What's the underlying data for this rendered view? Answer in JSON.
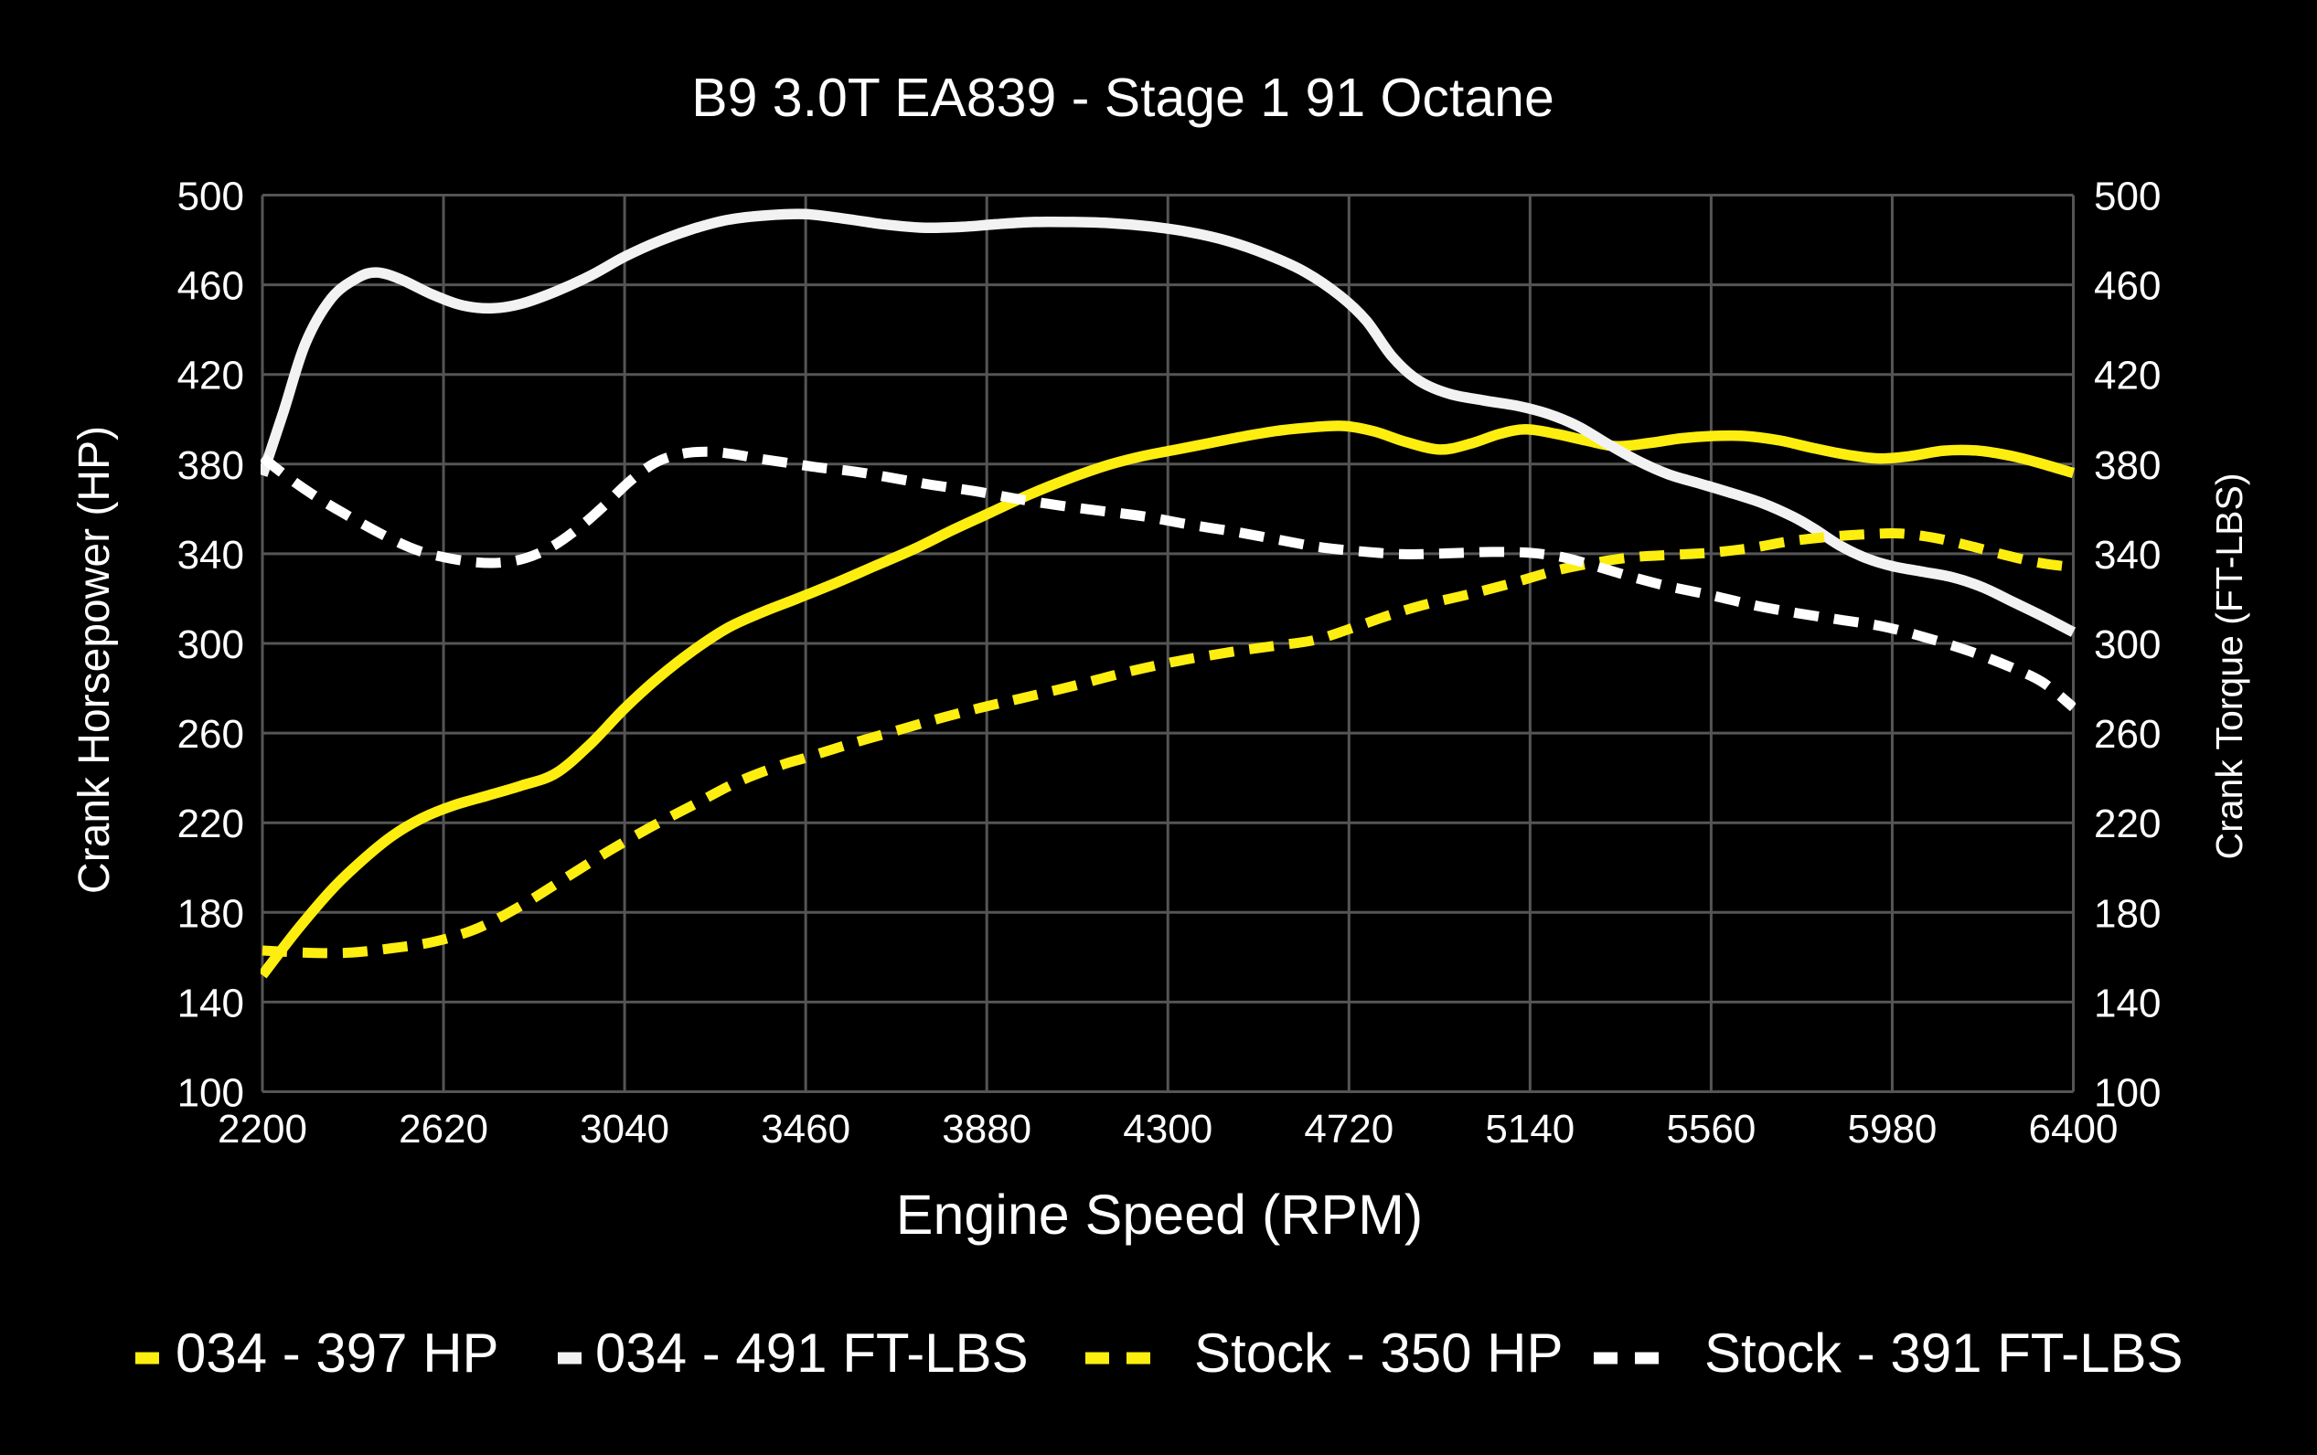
{
  "title": "B9 3.0T EA839 - Stage 1 91 Octane",
  "x_axis": {
    "label": "Engine Speed (RPM)",
    "min": 2200,
    "max": 6400,
    "ticks": [
      2200,
      2620,
      3040,
      3460,
      3880,
      4300,
      4720,
      5140,
      5560,
      5980,
      6400
    ]
  },
  "y_axis_left": {
    "label": "Crank Horsepower (HP)",
    "min": 100,
    "max": 500,
    "ticks": [
      100,
      140,
      180,
      220,
      260,
      300,
      340,
      380,
      420,
      460,
      500
    ]
  },
  "y_axis_right": {
    "label": "Crank Torque (FT-LBS)",
    "min": 100,
    "max": 500,
    "ticks": [
      100,
      140,
      180,
      220,
      260,
      300,
      340,
      380,
      420,
      460,
      500
    ]
  },
  "colors": {
    "background": "#000000",
    "grid": "#555555",
    "yellow": "#fdee10",
    "white_solid": "#f2f2f2",
    "white_dashed": "#ffffff",
    "text": "#ffffff"
  },
  "legend": [
    {
      "label": "034 - 397 HP",
      "color": "#fdee10",
      "dashed": false
    },
    {
      "label": "034 - 491 FT-LBS",
      "color": "#f2f2f2",
      "dashed": false
    },
    {
      "label": "Stock - 350 HP",
      "color": "#fdee10",
      "dashed": true
    },
    {
      "label": "Stock - 391 FT-LBS",
      "color": "#ffffff",
      "dashed": true
    }
  ],
  "chart_data": {
    "type": "line",
    "title": "B9 3.0T EA839 - Stage 1 91 Octane",
    "xlabel": "Engine Speed (RPM)",
    "ylabel": "Crank Horsepower (HP)",
    "ylabel_right": "Crank Torque (FT-LBS)",
    "xlim": [
      2200,
      6400
    ],
    "ylim": [
      100,
      500
    ],
    "grid": true,
    "legend_position": "bottom",
    "series": [
      {
        "name": "034 - 397 HP",
        "axis": "horsepower",
        "color": "#fdee10",
        "style": "solid",
        "peak": "397 HP",
        "points": [
          [
            2200,
            152
          ],
          [
            2280,
            172
          ],
          [
            2360,
            190
          ],
          [
            2430,
            203
          ],
          [
            2500,
            214
          ],
          [
            2570,
            222
          ],
          [
            2640,
            227.5
          ],
          [
            2720,
            232
          ],
          [
            2800,
            236.5
          ],
          [
            2880,
            242
          ],
          [
            2960,
            255
          ],
          [
            3040,
            271
          ],
          [
            3120,
            285
          ],
          [
            3200,
            297
          ],
          [
            3280,
            307
          ],
          [
            3360,
            314
          ],
          [
            3440,
            320
          ],
          [
            3530,
            327
          ],
          [
            3620,
            334.5
          ],
          [
            3710,
            342
          ],
          [
            3800,
            350.5
          ],
          [
            3890,
            358.5
          ],
          [
            3980,
            366.5
          ],
          [
            4070,
            373.5
          ],
          [
            4160,
            379.5
          ],
          [
            4240,
            383.5
          ],
          [
            4320,
            386.5
          ],
          [
            4400,
            389.5
          ],
          [
            4480,
            392.5
          ],
          [
            4560,
            395
          ],
          [
            4640,
            396.5
          ],
          [
            4710,
            397
          ],
          [
            4780,
            394.5
          ],
          [
            4850,
            390
          ],
          [
            4930,
            386.5
          ],
          [
            5000,
            389
          ],
          [
            5070,
            393.5
          ],
          [
            5130,
            395.5
          ],
          [
            5200,
            393.5
          ],
          [
            5270,
            390.5
          ],
          [
            5340,
            388
          ],
          [
            5420,
            389.5
          ],
          [
            5490,
            391.5
          ],
          [
            5560,
            392.5
          ],
          [
            5640,
            392.5
          ],
          [
            5720,
            390.5
          ],
          [
            5800,
            387
          ],
          [
            5880,
            384
          ],
          [
            5950,
            382.5
          ],
          [
            6020,
            383.5
          ],
          [
            6100,
            386
          ],
          [
            6180,
            386
          ],
          [
            6260,
            383.5
          ],
          [
            6330,
            380
          ],
          [
            6400,
            376
          ]
        ]
      },
      {
        "name": "034 - 491 FT-LBS",
        "axis": "torque",
        "color": "#f2f2f2",
        "style": "solid",
        "peak": "491 FT-LBS",
        "points": [
          [
            2200,
            375
          ],
          [
            2250,
            404
          ],
          [
            2300,
            434
          ],
          [
            2360,
            454
          ],
          [
            2420,
            463
          ],
          [
            2465,
            465.5
          ],
          [
            2520,
            462.5
          ],
          [
            2590,
            456
          ],
          [
            2660,
            451
          ],
          [
            2730,
            449.5
          ],
          [
            2800,
            451.5
          ],
          [
            2880,
            457
          ],
          [
            2960,
            464
          ],
          [
            3040,
            472.5
          ],
          [
            3120,
            479.5
          ],
          [
            3200,
            485
          ],
          [
            3280,
            489
          ],
          [
            3370,
            491
          ],
          [
            3460,
            491.5
          ],
          [
            3550,
            489.5
          ],
          [
            3640,
            487
          ],
          [
            3730,
            485.5
          ],
          [
            3820,
            485.8
          ],
          [
            3900,
            487
          ],
          [
            3990,
            488
          ],
          [
            4080,
            488
          ],
          [
            4170,
            487.5
          ],
          [
            4260,
            486
          ],
          [
            4350,
            483.5
          ],
          [
            4440,
            479.5
          ],
          [
            4530,
            473.5
          ],
          [
            4620,
            465.5
          ],
          [
            4700,
            455
          ],
          [
            4760,
            444
          ],
          [
            4820,
            428
          ],
          [
            4880,
            417.5
          ],
          [
            4950,
            411.5
          ],
          [
            5030,
            408.5
          ],
          [
            5110,
            406
          ],
          [
            5180,
            402.5
          ],
          [
            5250,
            397
          ],
          [
            5320,
            389
          ],
          [
            5390,
            381.5
          ],
          [
            5460,
            375.5
          ],
          [
            5530,
            371.5
          ],
          [
            5600,
            367.5
          ],
          [
            5680,
            362.5
          ],
          [
            5750,
            356.5
          ],
          [
            5800,
            351
          ],
          [
            5860,
            343.5
          ],
          [
            5920,
            338
          ],
          [
            5980,
            334.5
          ],
          [
            6050,
            332
          ],
          [
            6120,
            329.5
          ],
          [
            6190,
            325
          ],
          [
            6260,
            318.5
          ],
          [
            6330,
            312
          ],
          [
            6400,
            305
          ]
        ]
      },
      {
        "name": "Stock - 350 HP",
        "axis": "horsepower",
        "color": "#fdee10",
        "style": "dashed",
        "peak": "350 HP",
        "points": [
          [
            2200,
            163
          ],
          [
            2300,
            162
          ],
          [
            2400,
            162
          ],
          [
            2500,
            164
          ],
          [
            2600,
            167
          ],
          [
            2700,
            173
          ],
          [
            2800,
            183
          ],
          [
            2900,
            195
          ],
          [
            3000,
            207
          ],
          [
            3100,
            218
          ],
          [
            3200,
            228
          ],
          [
            3300,
            238
          ],
          [
            3400,
            245.5
          ],
          [
            3460,
            249
          ],
          [
            3560,
            255
          ],
          [
            3660,
            260.5
          ],
          [
            3760,
            266
          ],
          [
            3860,
            271
          ],
          [
            3960,
            275.5
          ],
          [
            4080,
            281
          ],
          [
            4200,
            287
          ],
          [
            4320,
            292
          ],
          [
            4440,
            296
          ],
          [
            4550,
            299
          ],
          [
            4640,
            301.5
          ],
          [
            4730,
            307
          ],
          [
            4820,
            313
          ],
          [
            4900,
            317.5
          ],
          [
            5000,
            322
          ],
          [
            5100,
            327
          ],
          [
            5200,
            332.5
          ],
          [
            5290,
            336
          ],
          [
            5380,
            338.5
          ],
          [
            5470,
            339.5
          ],
          [
            5560,
            340.5
          ],
          [
            5650,
            342.5
          ],
          [
            5740,
            345.5
          ],
          [
            5830,
            347.5
          ],
          [
            5920,
            348.7
          ],
          [
            6000,
            349
          ],
          [
            6080,
            347
          ],
          [
            6160,
            343.5
          ],
          [
            6240,
            339.5
          ],
          [
            6320,
            336
          ],
          [
            6400,
            334
          ]
        ]
      },
      {
        "name": "Stock - 391 FT-LBS",
        "axis": "torque",
        "color": "#ffffff",
        "style": "dashed",
        "peak": "391 FT-LBS",
        "points": [
          [
            2200,
            383
          ],
          [
            2260,
            374
          ],
          [
            2320,
            366
          ],
          [
            2380,
            359
          ],
          [
            2440,
            352.5
          ],
          [
            2500,
            346.5
          ],
          [
            2560,
            341.5
          ],
          [
            2620,
            338.5
          ],
          [
            2690,
            336.3
          ],
          [
            2750,
            336
          ],
          [
            2810,
            338
          ],
          [
            2870,
            343
          ],
          [
            2930,
            351
          ],
          [
            2990,
            361
          ],
          [
            3050,
            372
          ],
          [
            3110,
            380.5
          ],
          [
            3170,
            384.5
          ],
          [
            3230,
            385.5
          ],
          [
            3290,
            384.5
          ],
          [
            3350,
            382.5
          ],
          [
            3420,
            380.5
          ],
          [
            3490,
            378.5
          ],
          [
            3580,
            376.5
          ],
          [
            3670,
            373.5
          ],
          [
            3760,
            370.5
          ],
          [
            3850,
            368
          ],
          [
            3950,
            364.5
          ],
          [
            4050,
            361.5
          ],
          [
            4150,
            359
          ],
          [
            4250,
            356.5
          ],
          [
            4350,
            353
          ],
          [
            4450,
            350
          ],
          [
            4550,
            346.5
          ],
          [
            4650,
            343
          ],
          [
            4750,
            341
          ],
          [
            4850,
            339.8
          ],
          [
            4950,
            340.2
          ],
          [
            5050,
            340.8
          ],
          [
            5140,
            340.4
          ],
          [
            5220,
            338.3
          ],
          [
            5300,
            334
          ],
          [
            5380,
            329.5
          ],
          [
            5460,
            325.5
          ],
          [
            5560,
            321.5
          ],
          [
            5660,
            317
          ],
          [
            5760,
            313.5
          ],
          [
            5860,
            310.5
          ],
          [
            5960,
            307.5
          ],
          [
            6060,
            302.5
          ],
          [
            6160,
            296.5
          ],
          [
            6260,
            289
          ],
          [
            6330,
            282.5
          ],
          [
            6400,
            271.5
          ]
        ]
      }
    ]
  }
}
